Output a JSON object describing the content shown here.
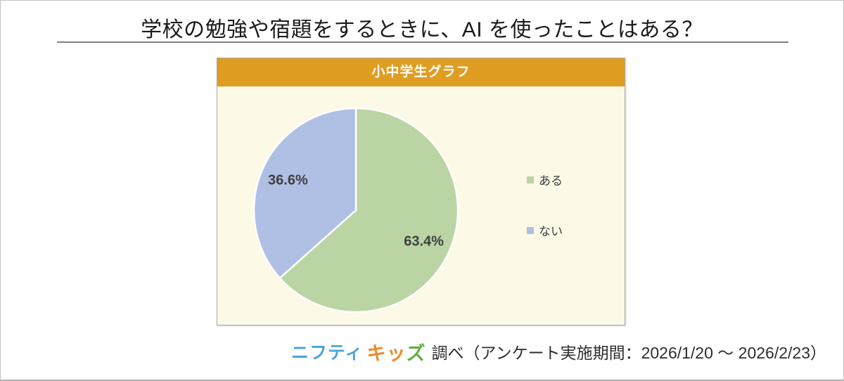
{
  "page": {
    "title": "学校の勉強や宿題をするときに、AI を使ったことはある？"
  },
  "panel": {
    "header": "小中学生グラフ"
  },
  "chart_data": {
    "type": "pie",
    "title": "小中学生グラフ",
    "question": "学校の勉強や宿題をするときに、AI を使ったことはある？",
    "categories": [
      "ある",
      "ない"
    ],
    "values": [
      63.4,
      36.6
    ],
    "unit": "%",
    "data_labels": [
      "63.4%",
      "36.6%"
    ],
    "colors": [
      "#BAD5A3",
      "#B0BFE4"
    ],
    "start_angle": "top",
    "direction": "clockwise",
    "legend_position": "right",
    "slice_border_color": "#FFFFFF"
  },
  "footer": {
    "logo_nifty": "ニフティ",
    "logo_kids": [
      {
        "char": "キ",
        "color": "#EE8A2A"
      },
      {
        "char": "ッ",
        "color": "#EE8A2A"
      },
      {
        "char": "ズ",
        "color": "#62AE3E"
      }
    ],
    "survey_text": "調べ（アンケート実施期間：2026/1/20 ～ 2026/2/23）"
  },
  "colors": {
    "panel_header_bg": "#DF9D22",
    "panel_bg": "#FCF9E7",
    "header_text": "#FFFFFF",
    "label_text": "#3F3F3F",
    "title_underline": "#7F7F7F",
    "nifty_logo_blue": "#4DA4DA"
  }
}
